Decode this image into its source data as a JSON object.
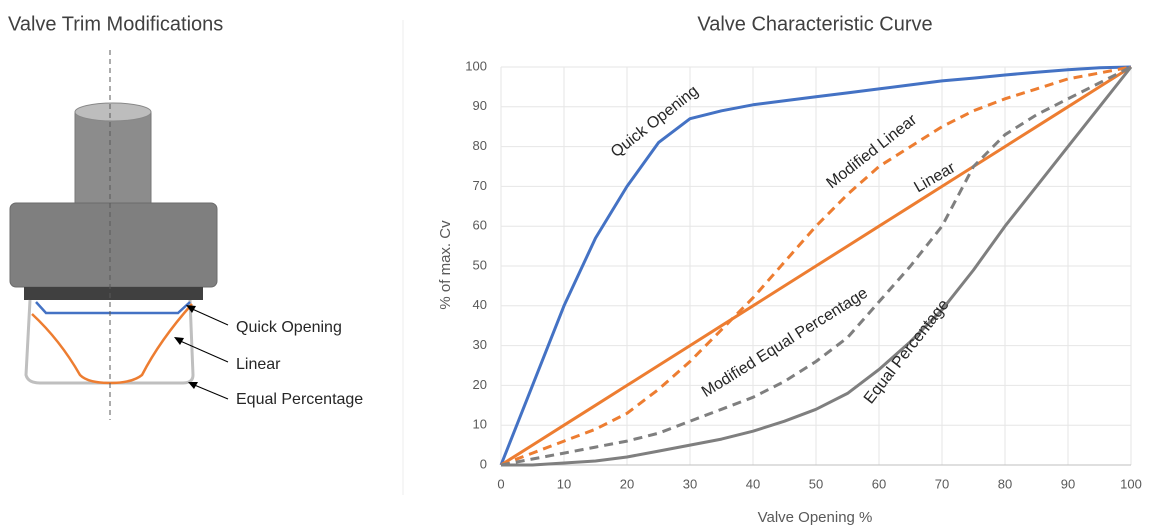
{
  "diagram": {
    "title": "Valve Trim Modifications",
    "labels": [
      "Quick Opening",
      "Linear",
      "Equal Percentage"
    ]
  },
  "chart_data": {
    "type": "line",
    "title": "Valve Characteristic Curve",
    "x_label": "Valve Opening %",
    "y_label": "% of max. Cv",
    "x": [
      0,
      5,
      10,
      15,
      20,
      25,
      30,
      35,
      40,
      45,
      50,
      55,
      60,
      65,
      70,
      75,
      80,
      85,
      90,
      95,
      100
    ],
    "series": [
      {
        "name": "Quick Opening",
        "color": "#4472c4",
        "dashed": false,
        "values": [
          0,
          20,
          40,
          57,
          70,
          81,
          87,
          89,
          90.5,
          91.5,
          92.5,
          93.5,
          94.5,
          95.5,
          96.5,
          97.2,
          98,
          98.7,
          99.3,
          99.8,
          100
        ]
      },
      {
        "name": "Modified Linear",
        "color": "#ed7d31",
        "dashed": true,
        "values": [
          0,
          3,
          6,
          9,
          13,
          19,
          26,
          34,
          42,
          51,
          60,
          68,
          75,
          80,
          85,
          89,
          92,
          94.5,
          97,
          98.5,
          100
        ]
      },
      {
        "name": "Linear",
        "color": "#ed7d31",
        "dashed": false,
        "values": [
          0,
          5,
          10,
          15,
          20,
          25,
          30,
          35,
          40,
          45,
          50,
          55,
          60,
          65,
          70,
          75,
          80,
          85,
          90,
          95,
          100
        ]
      },
      {
        "name": "Modified Equal Percentage",
        "color": "#7f7f7f",
        "dashed": true,
        "values": [
          0,
          1.5,
          3,
          4.5,
          6,
          8,
          11,
          14,
          17,
          21,
          26,
          32,
          41,
          50,
          60,
          75,
          83,
          88,
          92,
          96,
          100
        ]
      },
      {
        "name": "Equal Percentage",
        "color": "#7f7f7f",
        "dashed": false,
        "values": [
          0,
          0,
          0.5,
          1,
          2,
          3.5,
          5,
          6.5,
          8.5,
          11,
          14,
          18,
          24,
          31,
          39,
          49,
          60,
          70,
          80,
          90,
          100
        ]
      }
    ],
    "xlim": [
      0,
      100
    ],
    "xticks": [
      0,
      10,
      20,
      30,
      40,
      50,
      60,
      70,
      80,
      90,
      100
    ],
    "ylim": [
      0,
      100
    ],
    "yticks": [
      0,
      10,
      20,
      30,
      40,
      50,
      60,
      70,
      80,
      90,
      100
    ],
    "grid": true
  }
}
